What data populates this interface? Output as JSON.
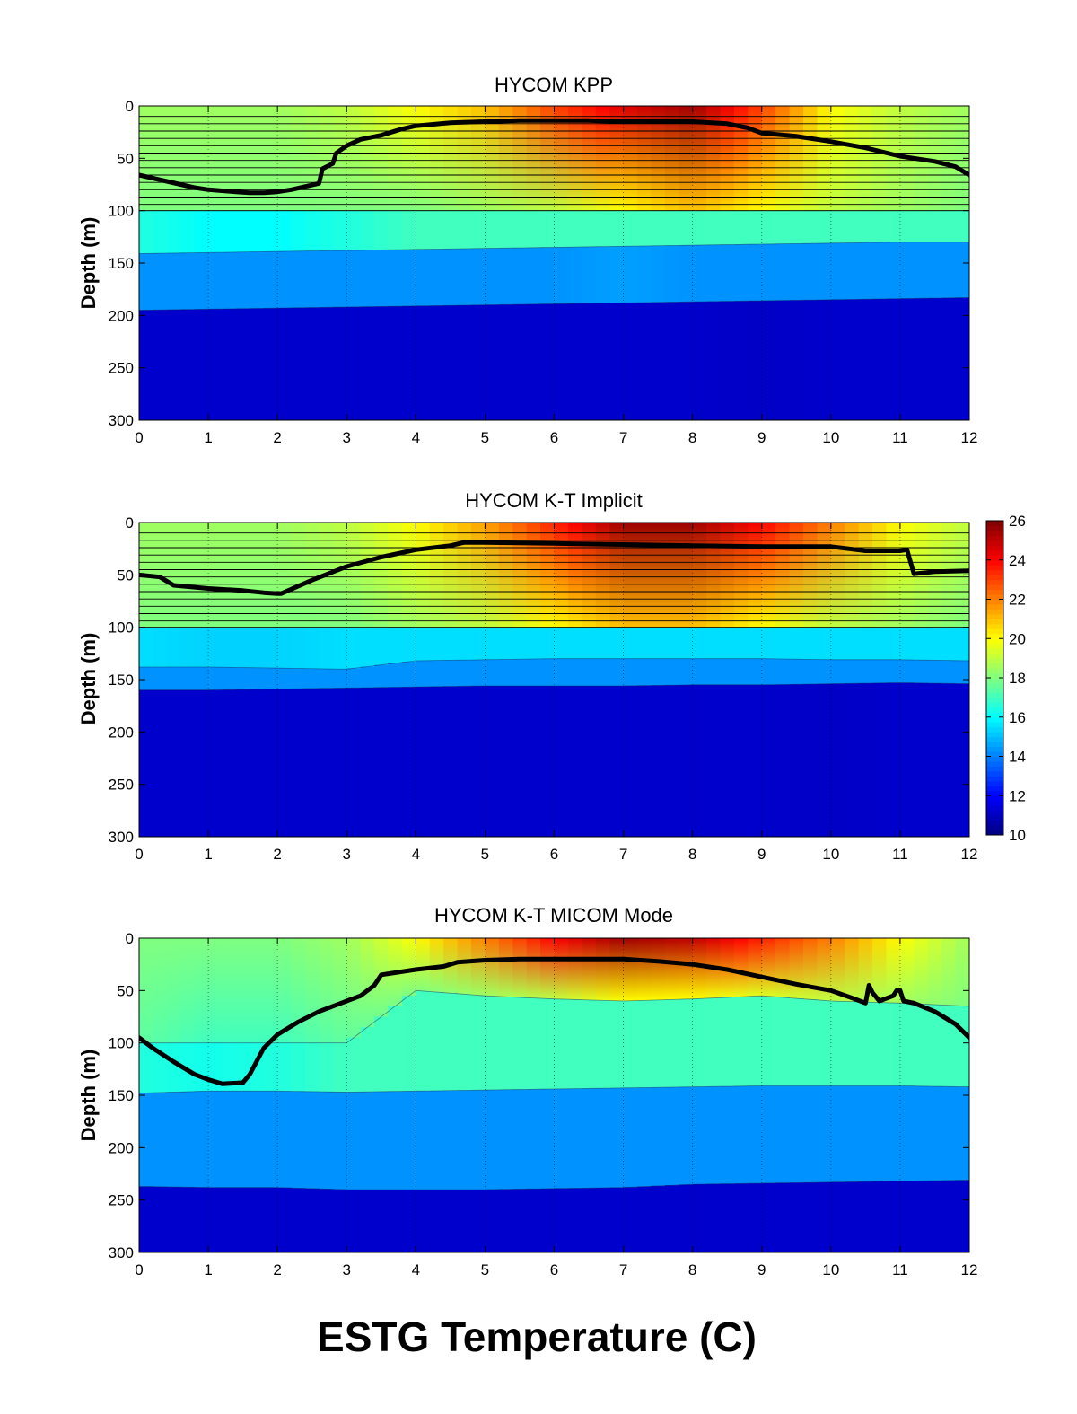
{
  "figure_title": "ESTG Temperature (C)",
  "colorbar": {
    "min": 10,
    "max": 26,
    "ticks": [
      "10",
      "12",
      "14",
      "16",
      "18",
      "20",
      "22",
      "24",
      "26"
    ],
    "colormap": "jet"
  },
  "chart_data": [
    {
      "type": "heatmap",
      "title": "HYCOM KPP",
      "ylabel": "Depth (m)",
      "xlabel": "",
      "xlim": [
        0,
        12
      ],
      "ylim": [
        300,
        0
      ],
      "x_ticks": [
        "0",
        "1",
        "2",
        "3",
        "4",
        "5",
        "6",
        "7",
        "8",
        "9",
        "10",
        "11",
        "12"
      ],
      "y_ticks": [
        "0",
        "50",
        "100",
        "150",
        "200",
        "250",
        "300"
      ],
      "grid": "vertical dotted",
      "layers": [
        {
          "depth_top": [
            0,
            0,
            0,
            0,
            0,
            0,
            0,
            0,
            0,
            0,
            0,
            0,
            0
          ],
          "t_top": [
            18.5,
            18.5,
            18.5,
            19,
            20,
            21,
            23,
            24.5,
            25.5,
            23,
            20,
            19,
            18.5
          ],
          "t_bottom": [
            18,
            18,
            18,
            18,
            18,
            18.5,
            19,
            20,
            21,
            20,
            19,
            18.5,
            18
          ]
        },
        {
          "depth_top": [
            100,
            100,
            100,
            100,
            100,
            100,
            100,
            100,
            100,
            100,
            100,
            100,
            100
          ],
          "t_top": [
            16.5,
            16,
            16,
            16.5,
            17,
            17,
            17,
            17,
            17,
            17,
            17,
            17,
            17
          ],
          "t_bottom": [
            16.5,
            16,
            16,
            16.5,
            17,
            17,
            17,
            17,
            17,
            17,
            17,
            17,
            17
          ]
        },
        {
          "depth_top": [
            141,
            140,
            139,
            138,
            137,
            136,
            135,
            134,
            133,
            132,
            131,
            130,
            130
          ],
          "t_top": [
            14.3,
            14.3,
            14.3,
            14.3,
            14.3,
            14.3,
            14.3,
            14.5,
            14.3,
            14.3,
            14.3,
            14.3,
            14.3
          ],
          "t_bottom": [
            14.3,
            14.3,
            14.3,
            14.3,
            14.3,
            14.3,
            14.3,
            14.5,
            14.3,
            14.3,
            14.3,
            14.3,
            14.3
          ]
        },
        {
          "depth_top": [
            195,
            194,
            193,
            192,
            191,
            190,
            189,
            188,
            187,
            186,
            185,
            184,
            183
          ],
          "t_top": [
            11.2,
            11.2,
            11.2,
            11.2,
            11.2,
            11.2,
            11.2,
            11.2,
            11.2,
            11.1,
            11.2,
            11.2,
            11.2
          ],
          "t_bottom": [
            11.2,
            11.2,
            11.2,
            11.2,
            11.2,
            11.2,
            11.2,
            11.2,
            11.2,
            11.1,
            11.2,
            11.2,
            11.2
          ]
        }
      ],
      "layer_interfaces_m": [
        10,
        17,
        24,
        31,
        38,
        45,
        52,
        59,
        66,
        73,
        80,
        87,
        94,
        100
      ],
      "mixed_layer_depth": {
        "x": [
          0,
          0.2,
          0.4,
          0.6,
          0.8,
          1.0,
          1.2,
          1.4,
          1.6,
          1.8,
          2.0,
          2.2,
          2.4,
          2.6,
          2.65,
          2.8,
          2.85,
          3.0,
          3.2,
          3.5,
          3.8,
          4.0,
          4.5,
          5.0,
          5.5,
          6.0,
          6.5,
          7.0,
          7.5,
          8.0,
          8.5,
          8.8,
          9.0,
          9.5,
          10.0,
          10.5,
          11.0,
          11.5,
          11.8,
          12.0
        ],
        "depth": [
          66,
          69,
          72,
          75,
          78,
          80,
          81,
          82,
          83,
          83,
          82,
          80,
          77,
          74,
          60,
          55,
          45,
          38,
          32,
          28,
          22,
          19,
          16,
          15,
          14,
          14,
          14,
          15,
          15,
          15,
          17,
          21,
          26,
          29,
          34,
          40,
          48,
          53,
          58,
          66
        ]
      }
    },
    {
      "type": "heatmap",
      "title": "HYCOM K-T Implicit",
      "ylabel": "Depth (m)",
      "xlabel": "",
      "xlim": [
        0,
        12
      ],
      "ylim": [
        300,
        0
      ],
      "x_ticks": [
        "0",
        "1",
        "2",
        "3",
        "4",
        "5",
        "6",
        "7",
        "8",
        "9",
        "10",
        "11",
        "12"
      ],
      "y_ticks": [
        "0",
        "50",
        "100",
        "150",
        "200",
        "250",
        "300"
      ],
      "grid": "vertical dotted",
      "layers": [
        {
          "depth_top": [
            0,
            0,
            0,
            0,
            0,
            0,
            0,
            0,
            0,
            0,
            0,
            0,
            0
          ],
          "t_top": [
            18.5,
            18.5,
            18.5,
            19,
            20,
            21.5,
            23.5,
            25.5,
            25.5,
            24,
            22,
            20,
            19
          ],
          "t_bottom": [
            18,
            18,
            18,
            18,
            18.5,
            19,
            20,
            21,
            21,
            20,
            19,
            18.5,
            18
          ]
        },
        {
          "depth_top": [
            100,
            100,
            100,
            100,
            100,
            100,
            100,
            100,
            100,
            100,
            100,
            100,
            100
          ],
          "t_top": [
            15.5,
            15.3,
            15.3,
            15.5,
            15.5,
            15.5,
            15.5,
            15.5,
            15.5,
            15.5,
            15.5,
            15.5,
            15.5
          ],
          "t_bottom": [
            15.5,
            15.3,
            15.3,
            15.5,
            15.5,
            15.5,
            15.5,
            15.5,
            15.5,
            15.5,
            15.5,
            15.5,
            15.5
          ]
        },
        {
          "depth_top": [
            138,
            138,
            139,
            140,
            132,
            131,
            130,
            130,
            130,
            130,
            131,
            131,
            132
          ],
          "t_top": [
            14.3,
            14.3,
            14.3,
            14.3,
            14.3,
            14.3,
            14.3,
            14.3,
            14.3,
            14.3,
            14.3,
            14.3,
            14.3
          ],
          "t_bottom": [
            14.3,
            14.3,
            14.3,
            14.3,
            14.3,
            14.3,
            14.3,
            14.3,
            14.3,
            14.3,
            14.3,
            14.3,
            14.3
          ]
        },
        {
          "depth_top": [
            160,
            160,
            159,
            158,
            157,
            156,
            156,
            156,
            155,
            155,
            154,
            153,
            154
          ],
          "t_top": [
            11.2,
            11.2,
            11.2,
            11.2,
            11.2,
            11.2,
            11.2,
            11.2,
            11.2,
            11.2,
            11.1,
            11.2,
            11.2
          ],
          "t_bottom": [
            11.2,
            11.2,
            11.2,
            11.2,
            11.2,
            11.2,
            11.2,
            11.2,
            11.2,
            11.2,
            11.1,
            11.2,
            11.2
          ]
        }
      ],
      "layer_interfaces_m": [
        10,
        17,
        24,
        31,
        38,
        45,
        52,
        59,
        66,
        73,
        80,
        87,
        94,
        100
      ],
      "mixed_layer_depth": {
        "x": [
          0,
          0.3,
          0.5,
          1.0,
          1.5,
          1.8,
          2.0,
          2.05,
          2.5,
          3.0,
          3.5,
          4.0,
          4.5,
          4.7,
          5.0,
          6.0,
          7.0,
          8.0,
          9.0,
          10.0,
          10.5,
          11.0,
          11.1,
          11.2,
          11.5,
          12.0
        ],
        "depth": [
          50,
          52,
          60,
          63,
          65,
          67,
          68,
          68,
          55,
          42,
          33,
          26,
          22,
          19,
          19,
          20,
          21,
          22,
          23,
          23,
          27,
          27,
          26,
          49,
          47,
          46
        ]
      }
    },
    {
      "type": "heatmap",
      "title": "HYCOM K-T MICOM Mode",
      "ylabel": "Depth (m)",
      "xlabel": "",
      "xlim": [
        0,
        12
      ],
      "ylim": [
        300,
        0
      ],
      "x_ticks": [
        "0",
        "1",
        "2",
        "3",
        "4",
        "5",
        "6",
        "7",
        "8",
        "9",
        "10",
        "11",
        "12"
      ],
      "y_ticks": [
        "0",
        "50",
        "100",
        "150",
        "200",
        "250",
        "300"
      ],
      "grid": "vertical dotted",
      "layers": [
        {
          "depth_top": [
            0,
            0,
            0,
            0,
            0,
            0,
            0,
            0,
            0,
            0,
            0,
            0,
            0
          ],
          "t_top": [
            18,
            18,
            18,
            18.5,
            20,
            22,
            24,
            25.5,
            25,
            23.5,
            22,
            20,
            18.5
          ],
          "t_bottom": [
            17.5,
            17,
            17,
            17.5,
            18,
            18.5,
            19,
            20,
            20,
            19.5,
            19,
            18.5,
            18
          ]
        },
        {
          "depth_top": [
            100,
            100,
            100,
            100,
            50,
            55,
            58,
            60,
            58,
            55,
            60,
            62,
            65
          ],
          "t_top": [
            16.5,
            16.3,
            16.5,
            17,
            17,
            17,
            17,
            17,
            17,
            17,
            17,
            17,
            17
          ],
          "t_bottom": [
            16.5,
            16.3,
            16.5,
            17,
            17,
            17,
            17,
            17,
            17,
            17,
            17,
            17,
            17
          ]
        },
        {
          "depth_top": [
            148,
            146,
            146,
            147,
            146,
            145,
            144,
            143,
            142,
            141,
            141,
            141,
            142
          ],
          "t_top": [
            14.3,
            14.3,
            14.3,
            14.3,
            14.3,
            14.3,
            14.3,
            14.3,
            14.3,
            14.3,
            14.3,
            14.3,
            14.3
          ],
          "t_bottom": [
            14.3,
            14.3,
            14.3,
            14.3,
            14.3,
            14.3,
            14.3,
            14.3,
            14.3,
            14.3,
            14.3,
            14.3,
            14.3
          ]
        },
        {
          "depth_top": [
            237,
            238,
            238,
            240,
            240,
            240,
            239,
            238,
            235,
            234,
            233,
            232,
            231
          ],
          "t_top": [
            11.2,
            11.2,
            11.2,
            11.2,
            11.2,
            11.2,
            11.2,
            11.2,
            11.2,
            11.2,
            11.2,
            11.2,
            11.2
          ],
          "t_bottom": [
            11.2,
            11.2,
            11.2,
            11.2,
            11.2,
            11.2,
            11.2,
            11.2,
            11.2,
            11.2,
            11.2,
            11.2,
            11.2
          ]
        }
      ],
      "layer_interfaces_m": [],
      "mixed_layer_depth": {
        "x": [
          0,
          0.2,
          0.5,
          0.8,
          1.0,
          1.2,
          1.5,
          1.6,
          1.8,
          2.0,
          2.3,
          2.6,
          3.0,
          3.2,
          3.4,
          3.5,
          4.0,
          4.4,
          4.6,
          5.0,
          5.5,
          6.0,
          6.5,
          7.0,
          7.5,
          8.0,
          8.5,
          9.0,
          9.5,
          10.0,
          10.3,
          10.5,
          10.55,
          10.6,
          10.7,
          10.9,
          10.95,
          11.0,
          11.05,
          11.2,
          11.5,
          11.8,
          12.0
        ],
        "depth": [
          95,
          105,
          118,
          130,
          135,
          139,
          138,
          130,
          105,
          92,
          80,
          70,
          60,
          55,
          45,
          35,
          30,
          27,
          23,
          21,
          20,
          20,
          20,
          20,
          22,
          25,
          30,
          37,
          44,
          50,
          57,
          62,
          45,
          52,
          60,
          55,
          50,
          50,
          60,
          62,
          70,
          82,
          95
        ]
      }
    }
  ]
}
